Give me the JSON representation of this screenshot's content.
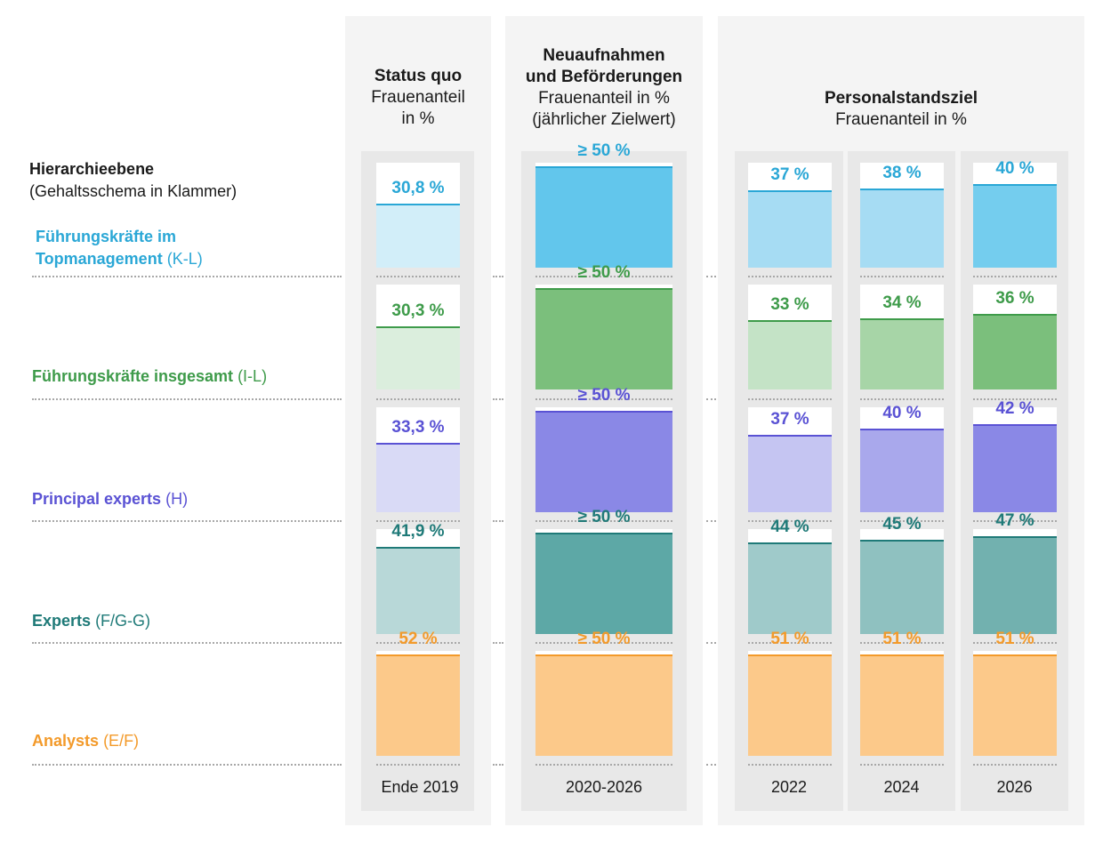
{
  "hierarchy": {
    "title": "Hierarchieebene",
    "subtitle": "(Gehaltsschema in Klammer)"
  },
  "headers": {
    "status": {
      "bold": "Status quo",
      "lines": [
        "Frauenanteil",
        "in %"
      ]
    },
    "new": {
      "bold": [
        "Neuaufnahmen",
        "und Beförderungen"
      ],
      "lines": [
        "Frauenanteil in %",
        "(jährlicher Zielwert)"
      ]
    },
    "target": {
      "bold": "Personalstandsziel",
      "lines": [
        "Frauenanteil in %"
      ]
    }
  },
  "rows": [
    {
      "name": "Führungskräfte im Topmanagement",
      "name_line1": "Führungskräfte im",
      "name_line2": "Topmanagement",
      "code": "(K-L)",
      "color": "#2aa7d6",
      "colors": [
        "#d2eef9",
        "#62c6ec",
        "#a6dcf3",
        "#a6dcf3",
        "#74cdee"
      ]
    },
    {
      "name": "Führungskräfte insgesamt",
      "code": "(I-L)",
      "color": "#3e9b4a",
      "colors": [
        "#dbeedd",
        "#7bbf7c",
        "#c4e3c6",
        "#a7d5a7",
        "#7bbf7c"
      ]
    },
    {
      "name": "Principal experts",
      "code": "(H)",
      "color": "#5a52d4",
      "colors": [
        "#d9daf6",
        "#8a88e6",
        "#c5c5f2",
        "#a9a8ec",
        "#8a88e6"
      ]
    },
    {
      "name": "Experts",
      "code": "(F/G-G)",
      "color": "#1f7a78",
      "colors": [
        "#b8d8d8",
        "#5da8a6",
        "#9fcaca",
        "#8fc1c0",
        "#72b1af"
      ]
    },
    {
      "name": "Analysts",
      "code": "(E/F)",
      "color": "#f39a2a",
      "colors": [
        "#fcc98a",
        "#fcc98a",
        "#fcc98a",
        "#fcc98a",
        "#fcc98a"
      ]
    }
  ],
  "chart_data": {
    "type": "bar",
    "title": "",
    "categories": [
      "Ende 2019",
      "2020-2026",
      "2022",
      "2024",
      "2026"
    ],
    "series": [
      {
        "name": "Führungskräfte im Topmanagement (K-L)",
        "values": [
          30.8,
          50,
          37,
          38,
          40
        ],
        "labels": [
          "30,8 %",
          "≥ 50 %",
          "37 %",
          "38 %",
          "40 %"
        ]
      },
      {
        "name": "Führungskräfte insgesamt (I-L)",
        "values": [
          30.3,
          50,
          33,
          34,
          36
        ],
        "labels": [
          "30,3 %",
          "≥ 50 %",
          "33 %",
          "34 %",
          "36 %"
        ]
      },
      {
        "name": "Principal experts (H)",
        "values": [
          33.3,
          50,
          37,
          40,
          42
        ],
        "labels": [
          "33,3 %",
          "≥ 50 %",
          "37 %",
          "40 %",
          "42 %"
        ]
      },
      {
        "name": "Experts (F/G-G)",
        "values": [
          41.9,
          50,
          44,
          45,
          47
        ],
        "labels": [
          "41,9 %",
          "≥ 50 %",
          "44 %",
          "45 %",
          "47 %"
        ]
      },
      {
        "name": "Analysts (E/F)",
        "values": [
          52,
          50,
          51,
          51,
          51
        ],
        "labels": [
          "52 %",
          "≥ 50 %",
          "51 %",
          "51 %",
          "51 %"
        ]
      }
    ],
    "ylim": [
      0,
      100
    ]
  }
}
